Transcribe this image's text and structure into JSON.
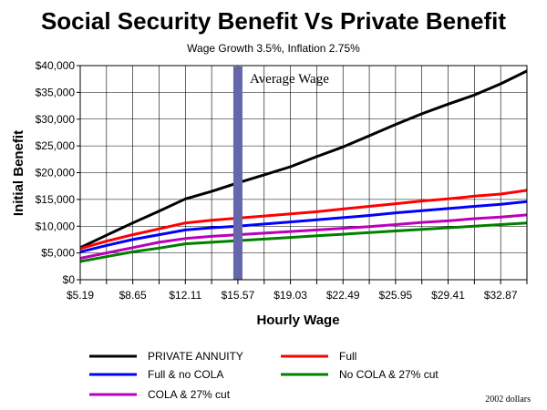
{
  "chart_data": {
    "type": "line",
    "title": "Social Security Benefit Vs Private Benefit",
    "subtitle": "Wage Growth 3.5%, Inflation 2.75%",
    "xlabel": "Hourly Wage",
    "ylabel": "Initial Benefit",
    "x_tick_labels": [
      "$5.19",
      "$8.65",
      "$12.11",
      "$15.57",
      "$19.03",
      "$22.49",
      "$25.95",
      "$29.41",
      "$32.87"
    ],
    "y_tick_labels": [
      "$0",
      "$5,000",
      "$10,000",
      "$15,000",
      "$20,000",
      "$25,000",
      "$30,000",
      "$35,000",
      "$40,000"
    ],
    "ylim": [
      0,
      40000
    ],
    "xlim": [
      5.19,
      34.6
    ],
    "grid": true,
    "x": [
      5.19,
      6.92,
      8.65,
      10.38,
      12.11,
      13.84,
      15.57,
      17.3,
      19.03,
      20.76,
      22.49,
      24.22,
      25.95,
      27.68,
      29.41,
      31.14,
      32.87,
      34.6
    ],
    "series": [
      {
        "name": "PRIVATE ANNUITY",
        "color": "#000000",
        "values": [
          6000,
          8300,
          10600,
          12800,
          15100,
          16500,
          18100,
          19600,
          21100,
          23000,
          24800,
          26900,
          29000,
          31000,
          32800,
          34500,
          36600,
          39000
        ]
      },
      {
        "name": "Full",
        "color": "#ff0000",
        "values": [
          5800,
          7200,
          8400,
          9500,
          10600,
          11100,
          11500,
          11900,
          12300,
          12700,
          13200,
          13700,
          14200,
          14700,
          15100,
          15600,
          16000,
          16700
        ]
      },
      {
        "name": "Full & no COLA",
        "color": "#0000ff",
        "values": [
          5200,
          6400,
          7500,
          8400,
          9300,
          9700,
          10000,
          10400,
          10800,
          11200,
          11600,
          12000,
          12500,
          12900,
          13300,
          13700,
          14100,
          14600
        ]
      },
      {
        "name": "No COLA & 27% cut",
        "color": "#008000",
        "values": [
          3400,
          4300,
          5200,
          5900,
          6700,
          7000,
          7300,
          7600,
          7900,
          8200,
          8500,
          8800,
          9100,
          9400,
          9700,
          10000,
          10300,
          10600
        ]
      },
      {
        "name": "COLA & 27% cut",
        "color": "#bb00bb",
        "values": [
          4000,
          5000,
          6000,
          7000,
          7700,
          8100,
          8400,
          8700,
          9000,
          9300,
          9600,
          9900,
          10300,
          10700,
          11000,
          11400,
          11700,
          12100
        ]
      }
    ],
    "annotation": {
      "label": "Average Wage",
      "x": 15.57,
      "color": "#6666aa"
    },
    "legend": [
      {
        "name": "PRIVATE ANNUITY",
        "color": "#000000"
      },
      {
        "name": "Full",
        "color": "#ff0000"
      },
      {
        "name": "Full & no COLA",
        "color": "#0000ff"
      },
      {
        "name": "No COLA & 27% cut",
        "color": "#008000"
      },
      {
        "name": "COLA & 27% cut",
        "color": "#bb00bb"
      }
    ],
    "legend_placement": "bottom",
    "footnote": "2002 dollars"
  }
}
